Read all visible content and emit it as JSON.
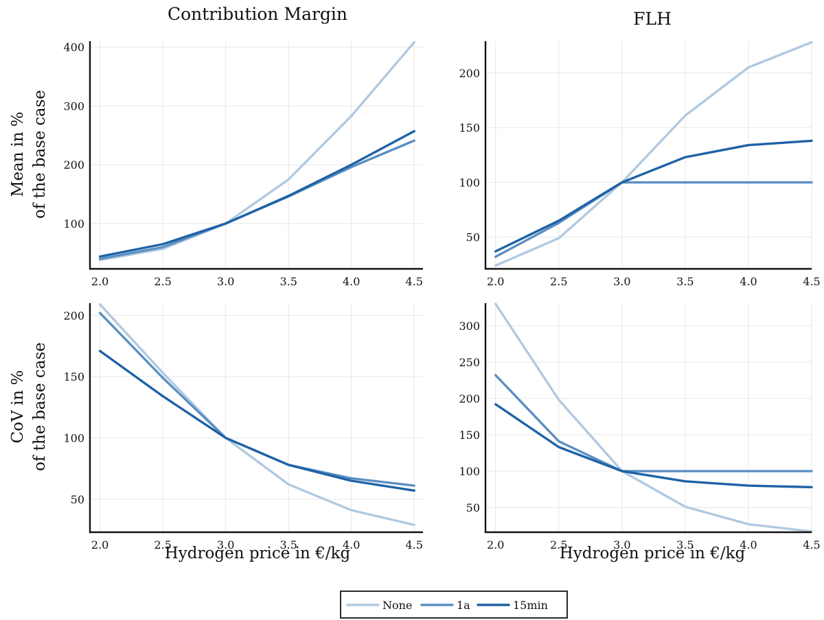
{
  "legend": {
    "placement": "bottom-center",
    "entries": [
      {
        "name": "None",
        "color": "#b1c9e0"
      },
      {
        "name": "1a",
        "color": "#5a8fc2"
      },
      {
        "name": "15min",
        "color": "#1e62a6"
      }
    ]
  },
  "column_titles": [
    "Contribution Margin",
    "FLH"
  ],
  "row_labels": [
    [
      "Mean in %",
      "of the base case"
    ],
    [
      "CoV in %",
      "of the base case"
    ]
  ],
  "chart_data": [
    {
      "type": "line",
      "title": "Contribution Margin",
      "xlabel": "",
      "ylabel": "Mean in % of the base case",
      "grid": true,
      "x": [
        2.0,
        2.5,
        3.0,
        3.5,
        4.0,
        4.5
      ],
      "x_ticks": [
        "2.0",
        "2.5",
        "3.0",
        "3.5",
        "4.0",
        "4.5"
      ],
      "xlim": [
        1.92,
        4.57
      ],
      "ylim": [
        23,
        410
      ],
      "y_ticks": [
        100,
        200,
        300,
        400
      ],
      "series": [
        {
          "name": "None",
          "values": [
            38,
            57,
            100,
            175,
            283,
            408
          ]
        },
        {
          "name": "1a",
          "values": [
            40,
            60,
            100,
            146,
            196,
            241
          ]
        },
        {
          "name": "15min",
          "values": [
            44,
            65,
            100,
            147,
            200,
            257
          ]
        }
      ]
    },
    {
      "type": "line",
      "title": "FLH",
      "xlabel": "",
      "ylabel": "",
      "grid": true,
      "x": [
        2.0,
        2.5,
        3.0,
        3.5,
        4.0,
        4.5
      ],
      "x_ticks": [
        "2.0",
        "2.5",
        "3.0",
        "3.5",
        "4.0",
        "4.5"
      ],
      "xlim": [
        1.92,
        4.5
      ],
      "ylim": [
        21,
        229
      ],
      "y_ticks": [
        50,
        100,
        150,
        200
      ],
      "series": [
        {
          "name": "None",
          "values": [
            24,
            49,
            100,
            161,
            205,
            228
          ]
        },
        {
          "name": "1a",
          "values": [
            32,
            63,
            100,
            100,
            100,
            100
          ]
        },
        {
          "name": "15min",
          "values": [
            37,
            65,
            100,
            123,
            134,
            138
          ]
        }
      ]
    },
    {
      "type": "line",
      "title": "",
      "xlabel": "Hydrogen price in €/kg",
      "ylabel": "CoV in % of the base case",
      "grid": true,
      "x": [
        2.0,
        2.5,
        3.0,
        3.5,
        4.0,
        4.5
      ],
      "x_ticks": [
        "2.0",
        "2.5",
        "3.0",
        "3.5",
        "4.0",
        "4.5"
      ],
      "xlim": [
        1.92,
        4.57
      ],
      "ylim": [
        23,
        210
      ],
      "y_ticks": [
        50,
        100,
        150,
        200
      ],
      "series": [
        {
          "name": "None",
          "values": [
            209,
            153,
            100,
            62,
            41,
            29
          ]
        },
        {
          "name": "1a",
          "values": [
            202,
            149,
            100,
            78,
            67,
            61
          ]
        },
        {
          "name": "15min",
          "values": [
            171,
            134,
            100,
            78,
            65,
            57
          ]
        }
      ]
    },
    {
      "type": "line",
      "title": "",
      "xlabel": "Hydrogen price in €/kg",
      "ylabel": "",
      "grid": true,
      "x": [
        2.0,
        2.5,
        3.0,
        3.5,
        4.0,
        4.5
      ],
      "x_ticks": [
        "2.0",
        "2.5",
        "3.0",
        "3.5",
        "4.0",
        "4.5"
      ],
      "xlim": [
        1.92,
        4.5
      ],
      "ylim": [
        16,
        331
      ],
      "y_ticks": [
        50,
        100,
        150,
        200,
        250,
        300
      ],
      "series": [
        {
          "name": "None",
          "values": [
            330,
            198,
            100,
            51,
            27,
            17
          ]
        },
        {
          "name": "1a",
          "values": [
            232,
            141,
            100,
            100,
            100,
            100
          ]
        },
        {
          "name": "15min",
          "values": [
            192,
            133,
            100,
            86,
            80,
            78
          ]
        }
      ]
    }
  ]
}
